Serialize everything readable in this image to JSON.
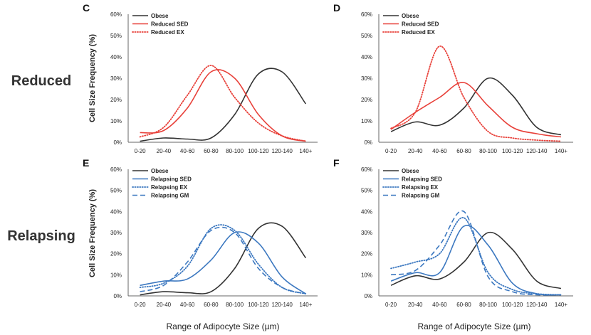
{
  "figure": {
    "row_labels": [
      "Reduced",
      "Relapsing"
    ],
    "ylabel": "Cell Size Frequency (%)",
    "xlabel": "Range of Adipocyte Size (µm)"
  },
  "colors": {
    "obese": "#333333",
    "red": "#e8413a",
    "blue": "#3c78c0"
  },
  "chart_data": [
    {
      "panel": "C",
      "type": "line",
      "categories": [
        "0-20",
        "20-40",
        "40-60",
        "60-80",
        "80-100",
        "100-120",
        "120-140",
        "140+"
      ],
      "ylim": [
        0,
        60
      ],
      "ytick_labels": [
        "0%",
        "10%",
        "20%",
        "30%",
        "40%",
        "50%",
        "60%"
      ],
      "series": [
        {
          "name": "Obese",
          "style": "solid",
          "color": "#333333",
          "values": [
            0.5,
            2,
            1.5,
            2,
            13,
            32,
            33,
            18
          ]
        },
        {
          "name": "Reduced  SED",
          "style": "solid",
          "color": "#e8413a",
          "values": [
            4.5,
            5.5,
            16,
            33,
            30,
            13,
            3,
            0.5
          ]
        },
        {
          "name": "Reduced  EX",
          "style": "dotted",
          "color": "#e8413a",
          "values": [
            2.5,
            7,
            22,
            36,
            21,
            9,
            3,
            0.5
          ]
        }
      ]
    },
    {
      "panel": "D",
      "type": "line",
      "categories": [
        "0-20",
        "20-40",
        "40-60",
        "60-80",
        "80-100",
        "100-120",
        "120-140",
        "140+"
      ],
      "ylim": [
        0,
        60
      ],
      "ytick_labels": [
        "0%",
        "10%",
        "20%",
        "30%",
        "40%",
        "50%",
        "60%"
      ],
      "series": [
        {
          "name": "Obese",
          "style": "solid",
          "color": "#333333",
          "values": [
            5,
            9.5,
            8,
            16,
            30,
            22,
            7,
            3.5
          ]
        },
        {
          "name": "Reduced  SED",
          "style": "solid",
          "color": "#e8413a",
          "values": [
            6,
            14,
            21,
            28,
            17,
            7,
            4,
            2.5
          ]
        },
        {
          "name": "Reduced  EX",
          "style": "dotted",
          "color": "#e8413a",
          "values": [
            6.5,
            14,
            45,
            21,
            5,
            2,
            1,
            0.5
          ]
        }
      ]
    },
    {
      "panel": "E",
      "type": "line",
      "categories": [
        "0-20",
        "20-40",
        "40-60",
        "60-80",
        "80-100",
        "100-120",
        "120-140",
        "140+"
      ],
      "ylim": [
        0,
        60
      ],
      "ytick_labels": [
        "0%",
        "10%",
        "20%",
        "30%",
        "40%",
        "50%",
        "60%"
      ],
      "series": [
        {
          "name": "Obese",
          "style": "solid",
          "color": "#333333",
          "values": [
            0.5,
            2,
            1.5,
            2,
            13,
            32,
            33,
            18
          ]
        },
        {
          "name": "Relapsing SED",
          "style": "solid",
          "color": "#3c78c0",
          "values": [
            5,
            7,
            8,
            17,
            30,
            25,
            9,
            1
          ]
        },
        {
          "name": "Relapsing EX",
          "style": "dotted",
          "color": "#3c78c0",
          "values": [
            4,
            6,
            14,
            32,
            31,
            15,
            4,
            1
          ]
        },
        {
          "name": "Relapsing GM",
          "style": "dashed",
          "color": "#3c78c0",
          "values": [
            2,
            5,
            16,
            31,
            30,
            13,
            4,
            1
          ]
        }
      ]
    },
    {
      "panel": "F",
      "type": "line",
      "categories": [
        "0-20",
        "20-40",
        "40-60",
        "60-80",
        "80-100",
        "100-120",
        "120-140",
        "140+"
      ],
      "ylim": [
        0,
        60
      ],
      "ytick_labels": [
        "0%",
        "10%",
        "20%",
        "30%",
        "40%",
        "50%",
        "60%"
      ],
      "series": [
        {
          "name": "Obese",
          "style": "solid",
          "color": "#333333",
          "values": [
            5,
            9.5,
            8,
            16,
            30,
            22,
            7,
            3.5
          ]
        },
        {
          "name": "Relapsing SED",
          "style": "solid",
          "color": "#3c78c0",
          "values": [
            7,
            11,
            11,
            33,
            24,
            6,
            1,
            0.5
          ]
        },
        {
          "name": "Relapsing EX",
          "style": "dotted",
          "color": "#3c78c0",
          "values": [
            13,
            16,
            20,
            37,
            11,
            3,
            1,
            0.5
          ]
        },
        {
          "name": "Relapsing GM",
          "style": "dashed",
          "color": "#3c78c0",
          "values": [
            10,
            12,
            24,
            40,
            9,
            2,
            0.5,
            0.5
          ]
        }
      ]
    }
  ]
}
